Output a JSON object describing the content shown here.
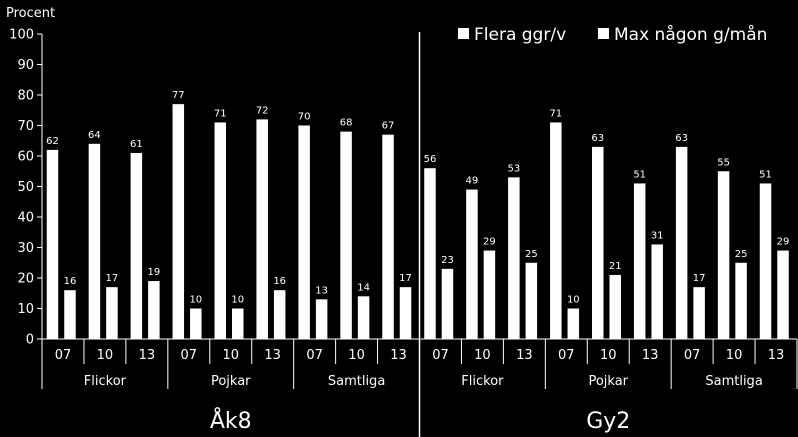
{
  "chart_data": {
    "type": "bar",
    "ylabel": "Procent",
    "ylim": [
      0,
      100
    ],
    "yticks": [
      0,
      10,
      20,
      30,
      40,
      50,
      60,
      70,
      80,
      90,
      100
    ],
    "grid": false,
    "legend_position": "top-right",
    "panels": [
      {
        "name": "Åk8",
        "groups": [
          {
            "name": "Flickor",
            "years": [
              "07",
              "10",
              "13"
            ]
          },
          {
            "name": "Pojkar",
            "years": [
              "07",
              "10",
              "13"
            ]
          },
          {
            "name": "Samtliga",
            "years": [
              "07",
              "10",
              "13"
            ]
          }
        ],
        "series": [
          {
            "name": "Flera ggr/v",
            "values": [
              62,
              64,
              61,
              77,
              71,
              72,
              70,
              68,
              67
            ]
          },
          {
            "name": "Max någon g/mån",
            "values": [
              16,
              17,
              19,
              10,
              10,
              16,
              13,
              14,
              17
            ]
          }
        ]
      },
      {
        "name": "Gy2",
        "groups": [
          {
            "name": "Flickor",
            "years": [
              "07",
              "10",
              "13"
            ]
          },
          {
            "name": "Pojkar",
            "years": [
              "07",
              "10",
              "13"
            ]
          },
          {
            "name": "Samtliga",
            "years": [
              "07",
              "10",
              "13"
            ]
          }
        ],
        "series": [
          {
            "name": "Flera ggr/v",
            "values": [
              56,
              49,
              53,
              71,
              63,
              51,
              63,
              55,
              51
            ]
          },
          {
            "name": "Max någon g/mån",
            "values": [
              23,
              29,
              25,
              10,
              21,
              31,
              17,
              25,
              29
            ]
          }
        ]
      }
    ],
    "colors": {
      "bars": "#ffffff",
      "background": "#000000",
      "text": "#ffffff"
    }
  }
}
